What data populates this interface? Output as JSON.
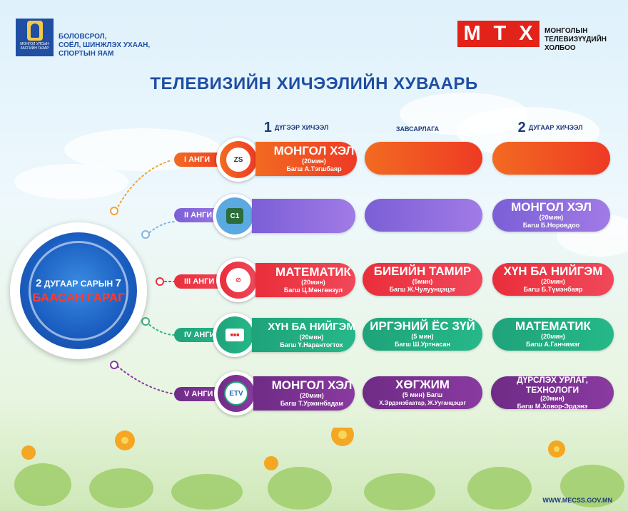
{
  "header": {
    "gov_logo_text": "МОНГОЛ УЛСЫН ЗАСГИЙН ГАЗАР",
    "ministry": "БОЛОВСРОЛ,\nСОЁЛ, ШИНЖЛЭХ УХААН,\nСПОРТЫН ЯАМ",
    "mtx_letters": [
      "М",
      "Т",
      "Х"
    ],
    "mtx_name": "МОНГОЛЫН\nТЕЛЕВИЗҮҮДИЙН\nХОЛБОО"
  },
  "title": "ТЕЛЕВИЗИЙН ХИЧЭЭЛИЙН ХУВААРЬ",
  "columns": {
    "first": {
      "num": "1",
      "label": "ДҮГЭЭР ХИЧЭЭЛ"
    },
    "break": {
      "label": "ЗАВСАРЛАГА"
    },
    "second": {
      "num": "2",
      "label": "ДУГААР ХИЧЭЭЛ"
    }
  },
  "date": {
    "num1": "2",
    "text": "ДУГААР САРЫН",
    "num2": "7",
    "day": "БААСАН ГАРАГ"
  },
  "rows": [
    {
      "grade": "I АНГИ",
      "logo": "ZS",
      "lesson1": {
        "subject": "МОНГОЛ ХЭЛ",
        "minutes": "(20мин)",
        "teacher": "Багш А.Тэгшбаяр"
      },
      "break": {
        "subject": "",
        "minutes": "",
        "teacher": ""
      },
      "lesson2": {
        "subject": "",
        "minutes": "",
        "teacher": ""
      }
    },
    {
      "grade": "II АНГИ",
      "logo": "C1",
      "lesson1": {
        "subject": "",
        "minutes": "",
        "teacher": ""
      },
      "break": {
        "subject": "",
        "minutes": "",
        "teacher": ""
      },
      "lesson2": {
        "subject": "МОНГОЛ ХЭЛ",
        "minutes": "(20мин)",
        "teacher": "Багш Б.Норовдоо"
      }
    },
    {
      "grade": "III АНГИ",
      "logo": "",
      "lesson1": {
        "subject": "МАТЕМАТИК",
        "minutes": "(20мин)",
        "teacher": "Багш Ц.Мөнгөнзул"
      },
      "break": {
        "subject": "БИЕИЙН ТАМИР",
        "minutes": "(5мин)",
        "teacher": "Багш Ж.Чулуунцэцэг"
      },
      "lesson2": {
        "subject": "ХҮН БА НИЙГЭМ",
        "minutes": "(20мин)",
        "teacher": "Багш Б.Түмэнбаяр"
      }
    },
    {
      "grade": "IV АНГИ",
      "logo": "",
      "lesson1": {
        "subject": "ХҮН БА НИЙГЭМ",
        "minutes": "(20мин)",
        "teacher": "Багш Ү.Нарантогтох"
      },
      "break": {
        "subject": "ИРГЭНИЙ ЁС ЗҮЙ",
        "minutes": "(5 мин)",
        "teacher": "Багш Ш.Уртнасан"
      },
      "lesson2": {
        "subject": "МАТЕМАТИК",
        "minutes": "(20мин)",
        "teacher": "Багш А.Ганчимэг"
      }
    },
    {
      "grade": "V АНГИ",
      "logo": "ETV",
      "lesson1": {
        "subject": "МОНГОЛ ХЭЛ",
        "minutes": "(20мин)",
        "teacher": "Багш Т.Уржинбадам"
      },
      "break": {
        "subject": "ХӨГЖИМ",
        "minutes": "(5 мин) Багш",
        "teacher": "Х.Эрдэнэбаатар, Ж.Ууганцэцэг"
      },
      "lesson2": {
        "subject": "ДҮРСЛЭХ УРЛАГ, ТЕХНОЛОГИ",
        "minutes": "(20мин)",
        "teacher": "Багш М.Ховор-Эрдэнэ"
      }
    }
  ],
  "footer": {
    "url": "WWW.MECSS.GOV.MN"
  },
  "colors": {
    "orange": "#f26b21",
    "violet": "#8a6ddc",
    "red": "#ea2e3b",
    "green": "#1fa37a",
    "purple": "#6f2b86",
    "title_blue": "#1f4ea3"
  }
}
